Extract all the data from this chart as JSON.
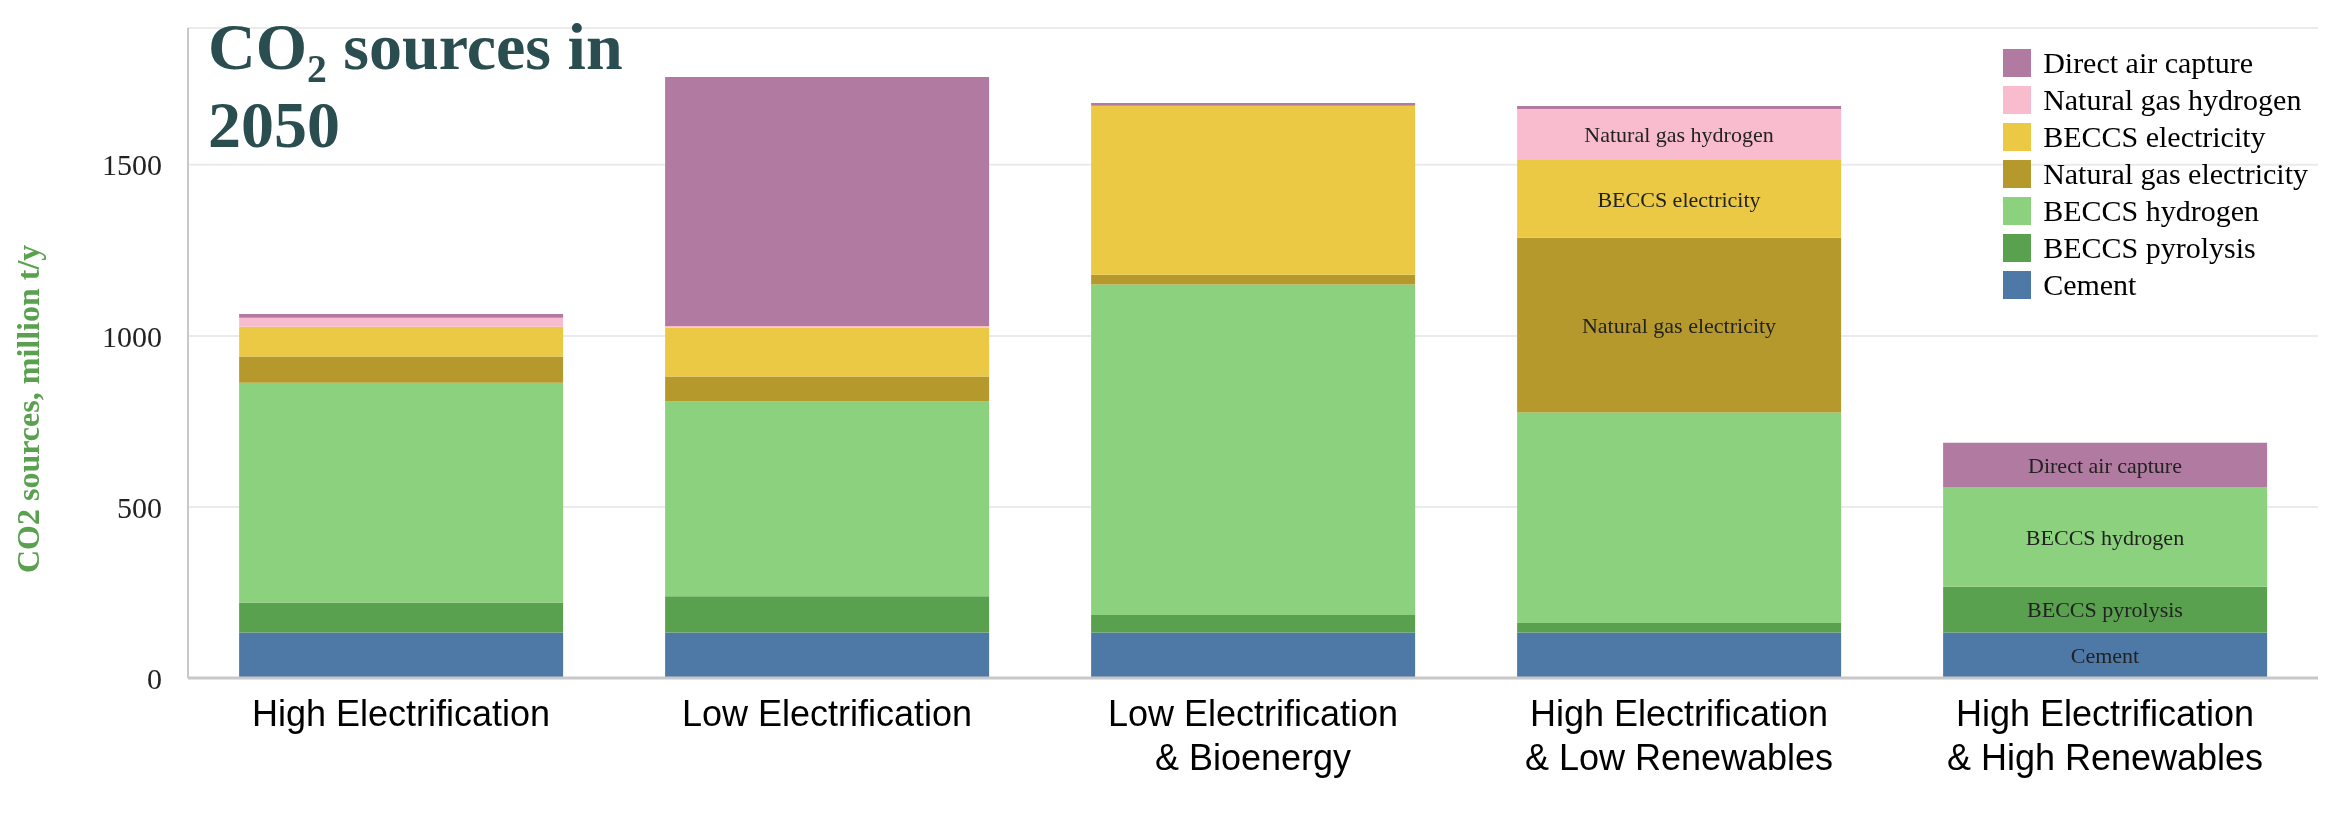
{
  "chart_data": {
    "type": "bar",
    "title": "CO₂ sources in 2050",
    "ylabel": "CO2 sources, million t/y",
    "categories": [
      "High Electrification",
      "Low Electrification",
      "Low Electrification & Bioenergy",
      "High Electrification & Low Renewables",
      "High Electrification & High Renewables"
    ],
    "stacked": true,
    "series": [
      {
        "name": "Cement",
        "color": "#4e79a7",
        "values": [
          133,
          133,
          133,
          133,
          133
        ]
      },
      {
        "name": "BECCS pyrolysis",
        "color": "#59a14f",
        "values": [
          88,
          106,
          51,
          28,
          134
        ]
      },
      {
        "name": "BECCS hydrogen",
        "color": "#8cd17d",
        "values": [
          642,
          569,
          966,
          615,
          290
        ]
      },
      {
        "name": "Natural gas electricity",
        "color": "#b6992d",
        "values": [
          77,
          73,
          29,
          511,
          0
        ]
      },
      {
        "name": "BECCS electricity",
        "color": "#ebc944",
        "values": [
          87,
          143,
          494,
          227,
          0
        ]
      },
      {
        "name": "Natural gas hydrogen",
        "color": "#f9bccf",
        "values": [
          26,
          5,
          0,
          149,
          0
        ]
      },
      {
        "name": "Direct air capture",
        "color": "#b07aa1",
        "values": [
          11,
          728,
          8,
          9,
          131
        ]
      }
    ],
    "ylim": [
      0,
      1900
    ],
    "yticks": [
      0,
      500,
      1000,
      1500
    ],
    "grid": "y",
    "legend": "top right",
    "annotations": [
      "Natural gas hydrogen",
      "BECCS electricity",
      "Natural gas electricity",
      "Direct air capture",
      "BECCS hydrogen",
      "BECCS pyrolysis",
      "Cement"
    ]
  }
}
